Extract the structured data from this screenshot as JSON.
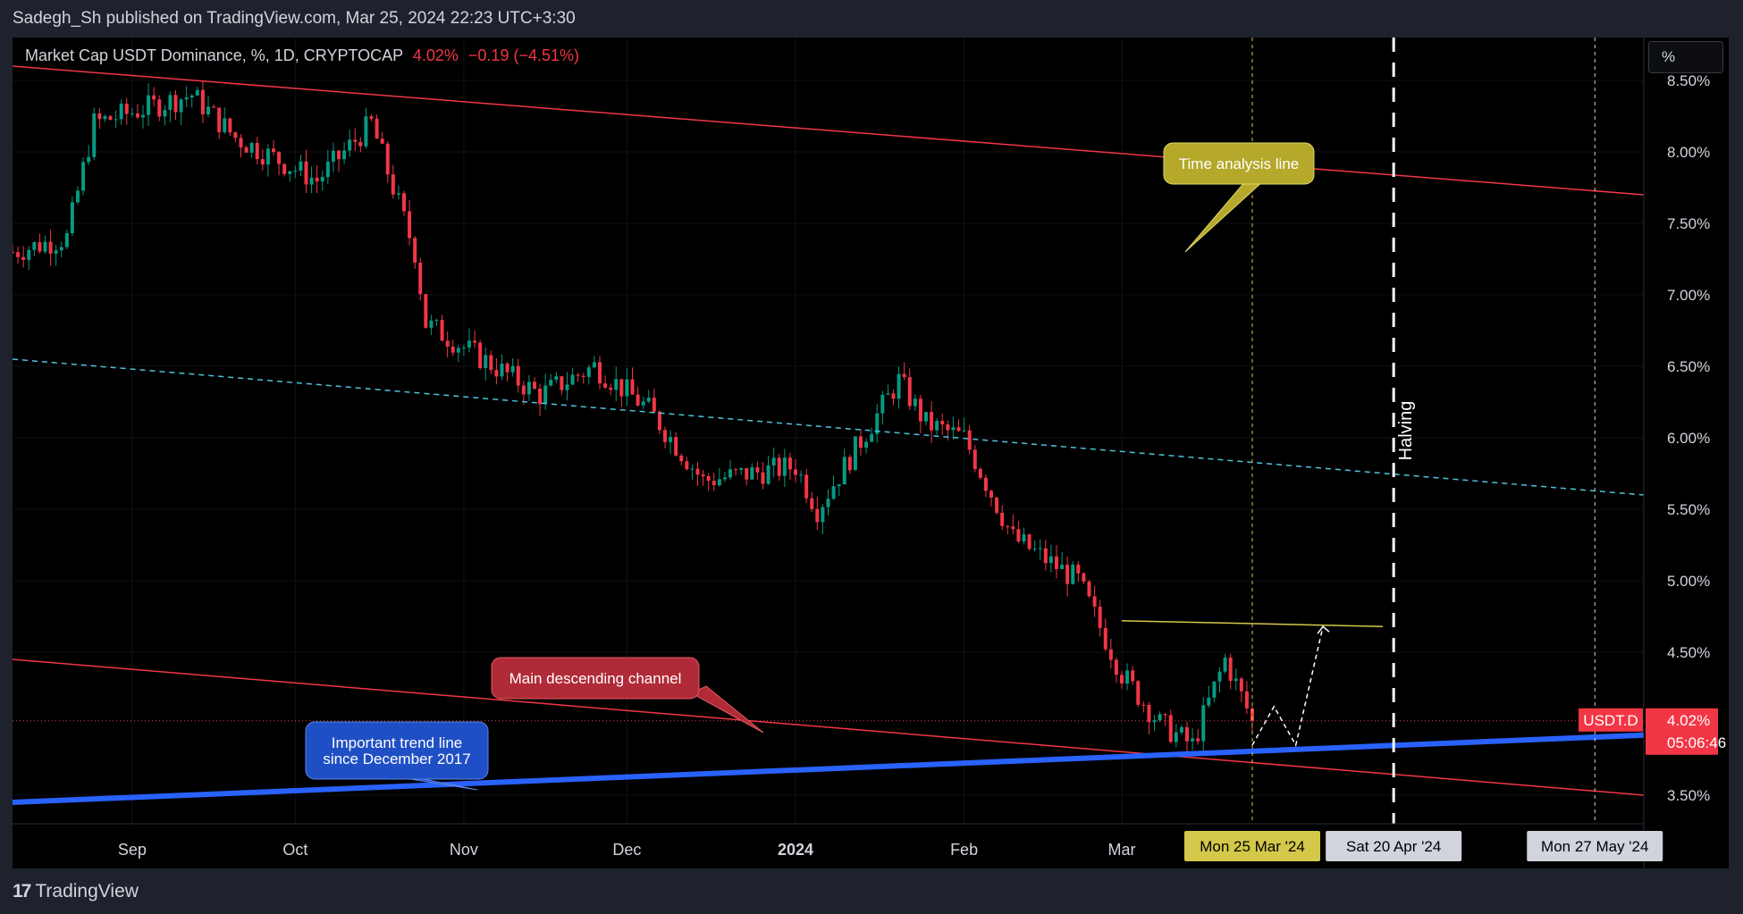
{
  "header": {
    "published": "Sadegh_Sh published on TradingView.com, Mar 25, 2024 22:23 UTC+3:30"
  },
  "legend": {
    "symbol": "Market Cap USDT Dominance, %, 1D, CRYPTOCAP",
    "last": "4.02%",
    "change": "−0.19 (−4.51%)"
  },
  "toolbar": {
    "scale_button": "%"
  },
  "footer": {
    "logo": "TradingView"
  },
  "colors": {
    "up": "#089981",
    "down": "#f23645",
    "background": "#000000",
    "channel": "#f23645",
    "midline": "#4dc3d9",
    "trendline": "#2962ff",
    "resistance": "#d4c84a"
  },
  "chart_data": {
    "type": "candlestick",
    "title": "Market Cap USDT Dominance, %, 1D, CRYPTOCAP",
    "ylim": [
      3.3,
      8.8
    ],
    "y_unit": "%",
    "y_ticks": [
      "8.50%",
      "8.00%",
      "7.50%",
      "7.00%",
      "6.50%",
      "6.00%",
      "5.50%",
      "5.00%",
      "4.50%",
      "3.50%"
    ],
    "x_labels": [
      "Sep",
      "Oct",
      "Nov",
      "Dec",
      "2024",
      "Feb",
      "Mar"
    ],
    "date_markers": [
      "Mon 25 Mar '24",
      "Sat 20 Apr '24",
      "Mon 27 May '24"
    ],
    "last_price": {
      "symbol": "USDT.D",
      "value": "4.02%",
      "countdown": "05:06:46"
    },
    "anchors": [
      [
        "2023-08-10",
        7.3
      ],
      [
        "2023-08-20",
        7.4
      ],
      [
        "2023-08-25",
        8.2
      ],
      [
        "2023-09-12",
        8.4
      ],
      [
        "2023-09-20",
        8.1
      ],
      [
        "2023-10-05",
        7.8
      ],
      [
        "2023-10-15",
        8.2
      ],
      [
        "2023-10-23",
        7.3
      ],
      [
        "2023-10-25",
        6.8
      ],
      [
        "2023-11-15",
        6.3
      ],
      [
        "2023-11-25",
        6.5
      ],
      [
        "2023-12-05",
        6.2
      ],
      [
        "2023-12-15",
        5.7
      ],
      [
        "2024-01-01",
        5.8
      ],
      [
        "2024-01-05",
        5.5
      ],
      [
        "2024-01-15",
        6.1
      ],
      [
        "2024-01-20",
        6.4
      ],
      [
        "2024-01-25",
        6.1
      ],
      [
        "2024-02-01",
        6.0
      ],
      [
        "2024-02-10",
        5.3
      ],
      [
        "2024-02-22",
        5.0
      ],
      [
        "2024-03-01",
        4.35
      ],
      [
        "2024-03-08",
        4.0
      ],
      [
        "2024-03-14",
        3.85
      ],
      [
        "2024-03-20",
        4.45
      ],
      [
        "2024-03-25",
        4.02
      ]
    ],
    "drawings": {
      "channel_upper": [
        [
          "2023-08-10",
          8.6
        ],
        [
          "2024-06-05",
          7.7
        ]
      ],
      "channel_mid": [
        [
          "2023-08-10",
          6.55
        ],
        [
          "2024-06-05",
          5.6
        ]
      ],
      "channel_lower": [
        [
          "2023-08-10",
          4.45
        ],
        [
          "2024-06-05",
          3.5
        ]
      ],
      "trend_line": [
        [
          "2023-08-10",
          3.45
        ],
        [
          "2024-06-05",
          3.92
        ]
      ],
      "resistance": [
        [
          "2024-03-01",
          4.72
        ],
        [
          "2024-04-18",
          4.68
        ]
      ],
      "projection": [
        [
          "2024-03-25",
          3.85
        ],
        [
          "2024-03-29",
          4.12
        ],
        [
          "2024-04-02",
          3.85
        ],
        [
          "2024-04-07",
          4.68
        ]
      ],
      "vertical_lines": {
        "time_analysis": "2024-03-25",
        "halving": "2024-04-20",
        "end": "2024-05-27"
      }
    },
    "annotations": {
      "time_analysis": "Time analysis line",
      "channel": "Main descending channel",
      "trendline": "Important trend line since December 2017",
      "halving": "Halving"
    }
  }
}
